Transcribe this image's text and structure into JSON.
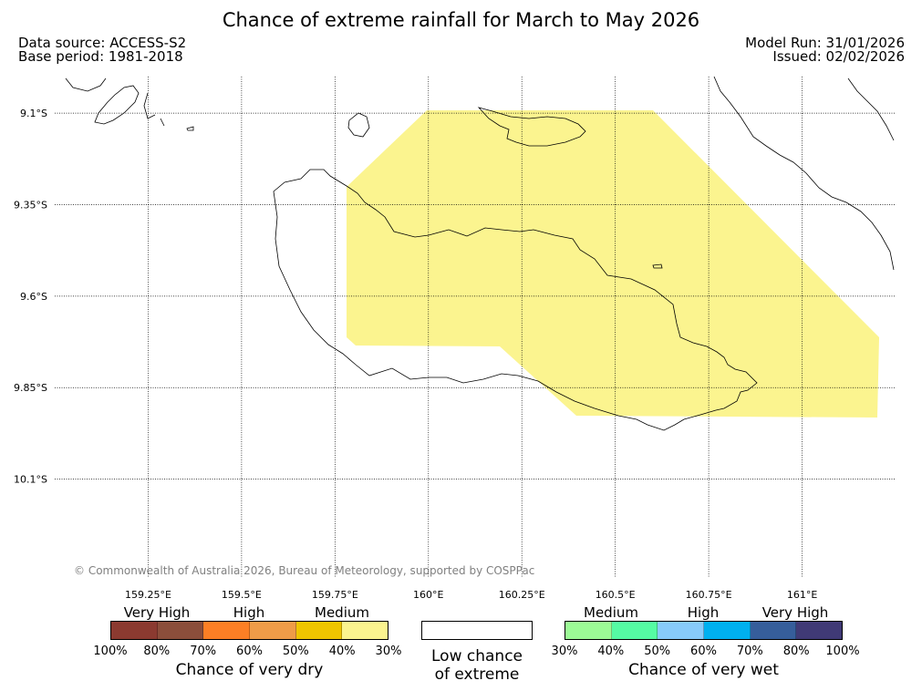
{
  "title": "Chance of extreme rainfall for March to May 2026",
  "meta": {
    "data_source": "Data source: ACCESS-S2",
    "base_period": "Base period: 1981-2018",
    "model_run": "Model Run: 31/01/2026",
    "issued": "Issued: 02/02/2026"
  },
  "map": {
    "lat_ticks": [
      "9.1°S",
      "9.35°S",
      "9.6°S",
      "9.85°S",
      "10.1°S"
    ],
    "lon_ticks": [
      "159.25°E",
      "159.5°E",
      "159.75°E",
      "160°E",
      "160.25°E",
      "160.5°E",
      "160.75°E",
      "161°E"
    ],
    "extent": {
      "lon_min": 159.0,
      "lon_max": 161.25,
      "lat_top": -9.0,
      "lat_bottom": -10.37
    },
    "shaded_category": "Chance of very dry, 30%–40%",
    "shade_color": "#fbf48f",
    "grid": true
  },
  "copyright": "© Commonwealth of Australia 2026, Bureau of Meteorology, supported by COSPPac",
  "legend": {
    "dry": {
      "headers": [
        "Very High",
        "High",
        "Medium"
      ],
      "colors": [
        "#8b3a30",
        "#8b4e3b",
        "#fc7f25",
        "#ef9c48",
        "#efc500",
        "#fbf48f"
      ],
      "ticks": [
        "100%",
        "80%",
        "70%",
        "60%",
        "50%",
        "40%",
        "30%"
      ],
      "label": "Chance of very dry"
    },
    "neutral": {
      "label_line1": "Low chance",
      "label_line2": "of extreme"
    },
    "wet": {
      "headers": [
        "Medium",
        "High",
        "Very High"
      ],
      "colors": [
        "#9cfb96",
        "#55fba3",
        "#87cbfa",
        "#00b0ef",
        "#365e9b",
        "#403a76"
      ],
      "ticks": [
        "30%",
        "40%",
        "50%",
        "60%",
        "70%",
        "80%",
        "100%"
      ],
      "label": "Chance of very wet"
    }
  }
}
